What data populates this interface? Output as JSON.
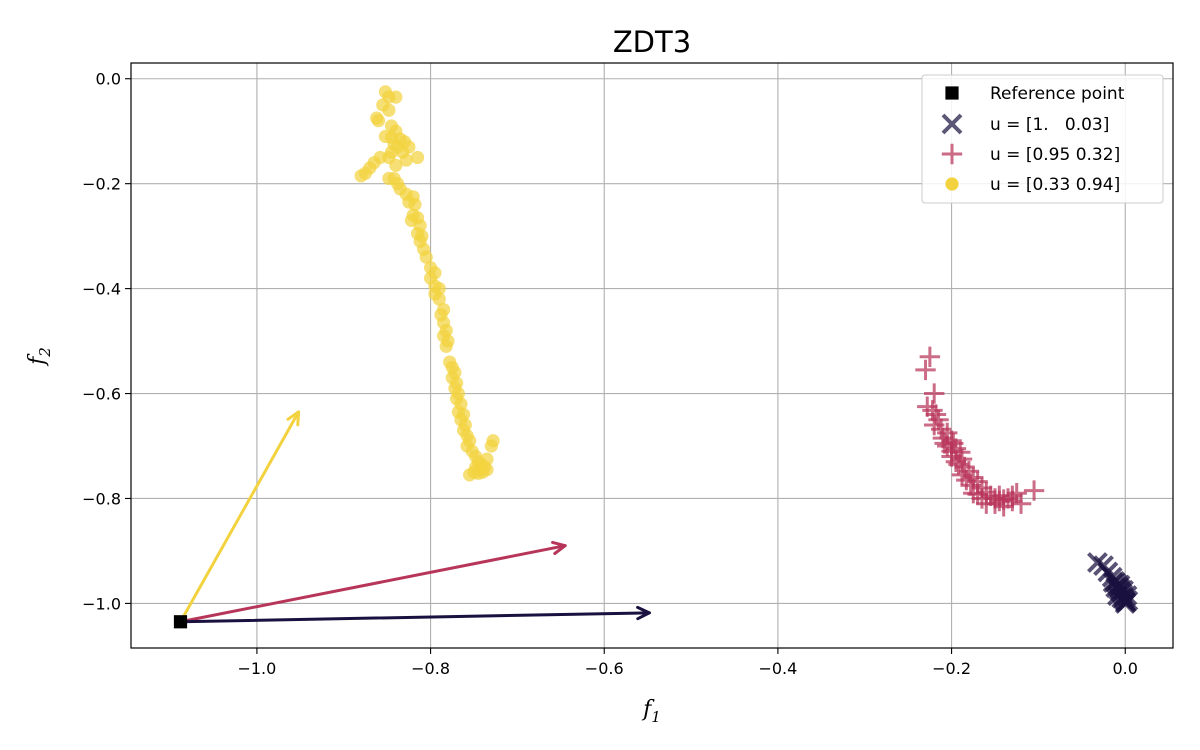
{
  "chart_data": {
    "type": "scatter",
    "title": "ZDT3",
    "xlabel": "f",
    "xlabel_sub": "1",
    "ylabel": "f",
    "ylabel_sub": "2",
    "xlim": [
      -1.145,
      0.055
    ],
    "ylim": [
      -1.085,
      0.03
    ],
    "xticks": [
      -1.0,
      -0.8,
      -0.6,
      -0.4,
      -0.2,
      0.0
    ],
    "xtick_labels": [
      "−1.0",
      "−0.8",
      "−0.6",
      "−0.4",
      "−0.2",
      "0.0"
    ],
    "yticks": [
      0.0,
      -0.2,
      -0.4,
      -0.6,
      -0.8,
      -1.0
    ],
    "ytick_labels": [
      "0.0",
      "−0.2",
      "−0.4",
      "−0.6",
      "−0.8",
      "−1.0"
    ],
    "grid": true,
    "legend_position": "top-right",
    "reference_point": {
      "name": "Reference point",
      "x": -1.088,
      "y": -1.035,
      "color": "#000000",
      "marker": "square"
    },
    "arrows": [
      {
        "color": "#f2d33f",
        "from": [
          -1.088,
          -1.035
        ],
        "to": [
          -0.952,
          -0.635
        ]
      },
      {
        "color": "#b8355a",
        "from": [
          -1.088,
          -1.035
        ],
        "to": [
          -0.645,
          -0.89
        ]
      },
      {
        "color": "#1a1140",
        "from": [
          -1.088,
          -1.035
        ],
        "to": [
          -0.548,
          -1.018
        ]
      }
    ],
    "series": [
      {
        "name": "u = [1.   0.03]",
        "marker": "x",
        "color": "#1a1140",
        "legend_color": "#5c5677",
        "points": [
          [
            -0.032,
            -0.922
          ],
          [
            -0.025,
            -0.928
          ],
          [
            -0.02,
            -0.94
          ],
          [
            -0.015,
            -0.95
          ],
          [
            -0.012,
            -0.958
          ],
          [
            -0.01,
            -0.962
          ],
          [
            -0.008,
            -0.968
          ],
          [
            -0.006,
            -0.972
          ],
          [
            -0.005,
            -0.978
          ],
          [
            -0.003,
            -0.982
          ],
          [
            -0.002,
            -0.988
          ],
          [
            -0.001,
            -0.992
          ],
          [
            0.0,
            -0.996
          ],
          [
            0.001,
            -0.998
          ],
          [
            0.003,
            -0.995
          ],
          [
            -0.004,
            -0.99
          ],
          [
            -0.007,
            -0.975
          ],
          [
            -0.009,
            -0.985
          ],
          [
            0.002,
            -0.985
          ],
          [
            -0.011,
            -0.97
          ],
          [
            -0.014,
            -0.96
          ],
          [
            0.0,
            -1.0
          ],
          [
            -0.002,
            -0.975
          ],
          [
            -0.006,
            -0.965
          ]
        ]
      },
      {
        "name": "u = [0.95 0.32]",
        "marker": "plus",
        "color": "#b8355a",
        "legend_color": "#cc6b85",
        "points": [
          [
            -0.225,
            -0.53
          ],
          [
            -0.23,
            -0.555
          ],
          [
            -0.22,
            -0.6
          ],
          [
            -0.228,
            -0.625
          ],
          [
            -0.222,
            -0.632
          ],
          [
            -0.218,
            -0.64
          ],
          [
            -0.215,
            -0.65
          ],
          [
            -0.22,
            -0.66
          ],
          [
            -0.212,
            -0.668
          ],
          [
            -0.205,
            -0.675
          ],
          [
            -0.21,
            -0.685
          ],
          [
            -0.2,
            -0.69
          ],
          [
            -0.198,
            -0.695
          ],
          [
            -0.205,
            -0.7
          ],
          [
            -0.195,
            -0.705
          ],
          [
            -0.19,
            -0.712
          ],
          [
            -0.2,
            -0.72
          ],
          [
            -0.188,
            -0.725
          ],
          [
            -0.192,
            -0.735
          ],
          [
            -0.185,
            -0.74
          ],
          [
            -0.18,
            -0.748
          ],
          [
            -0.188,
            -0.755
          ],
          [
            -0.175,
            -0.76
          ],
          [
            -0.17,
            -0.768
          ],
          [
            -0.178,
            -0.775
          ],
          [
            -0.165,
            -0.78
          ],
          [
            -0.16,
            -0.788
          ],
          [
            -0.17,
            -0.792
          ],
          [
            -0.155,
            -0.795
          ],
          [
            -0.15,
            -0.8
          ],
          [
            -0.145,
            -0.805
          ],
          [
            -0.14,
            -0.802
          ],
          [
            -0.135,
            -0.8
          ],
          [
            -0.13,
            -0.795
          ],
          [
            -0.125,
            -0.79
          ],
          [
            -0.12,
            -0.81
          ],
          [
            -0.105,
            -0.785
          ],
          [
            -0.15,
            -0.81
          ],
          [
            -0.14,
            -0.815
          ],
          [
            -0.16,
            -0.81
          ],
          [
            -0.165,
            -0.8
          ],
          [
            -0.175,
            -0.79
          ],
          [
            -0.183,
            -0.765
          ],
          [
            -0.195,
            -0.73
          ],
          [
            -0.2,
            -0.71
          ],
          [
            -0.208,
            -0.695
          ],
          [
            -0.13,
            -0.805
          ],
          [
            -0.145,
            -0.795
          ]
        ]
      },
      {
        "name": "u = [0.33 0.94]",
        "marker": "circle",
        "color": "#f2d33f",
        "legend_color": "#f2d33f",
        "points": [
          [
            -0.852,
            -0.025
          ],
          [
            -0.848,
            -0.035
          ],
          [
            -0.84,
            -0.035
          ],
          [
            -0.855,
            -0.05
          ],
          [
            -0.848,
            -0.06
          ],
          [
            -0.862,
            -0.075
          ],
          [
            -0.86,
            -0.08
          ],
          [
            -0.845,
            -0.09
          ],
          [
            -0.84,
            -0.1
          ],
          [
            -0.852,
            -0.11
          ],
          [
            -0.845,
            -0.112
          ],
          [
            -0.835,
            -0.115
          ],
          [
            -0.83,
            -0.12
          ],
          [
            -0.842,
            -0.125
          ],
          [
            -0.838,
            -0.13
          ],
          [
            -0.825,
            -0.13
          ],
          [
            -0.832,
            -0.14
          ],
          [
            -0.845,
            -0.14
          ],
          [
            -0.858,
            -0.15
          ],
          [
            -0.848,
            -0.15
          ],
          [
            -0.815,
            -0.15
          ],
          [
            -0.828,
            -0.155
          ],
          [
            -0.865,
            -0.16
          ],
          [
            -0.87,
            -0.17
          ],
          [
            -0.875,
            -0.18
          ],
          [
            -0.88,
            -0.185
          ],
          [
            -0.84,
            -0.165
          ],
          [
            -0.842,
            -0.19
          ],
          [
            -0.848,
            -0.19
          ],
          [
            -0.838,
            -0.2
          ],
          [
            -0.835,
            -0.21
          ],
          [
            -0.828,
            -0.22
          ],
          [
            -0.82,
            -0.225
          ],
          [
            -0.825,
            -0.235
          ],
          [
            -0.818,
            -0.24
          ],
          [
            -0.82,
            -0.26
          ],
          [
            -0.815,
            -0.265
          ],
          [
            -0.822,
            -0.27
          ],
          [
            -0.812,
            -0.28
          ],
          [
            -0.815,
            -0.295
          ],
          [
            -0.81,
            -0.3
          ],
          [
            -0.812,
            -0.31
          ],
          [
            -0.808,
            -0.325
          ],
          [
            -0.805,
            -0.34
          ],
          [
            -0.8,
            -0.36
          ],
          [
            -0.795,
            -0.37
          ],
          [
            -0.8,
            -0.38
          ],
          [
            -0.795,
            -0.395
          ],
          [
            -0.79,
            -0.4
          ],
          [
            -0.795,
            -0.41
          ],
          [
            -0.79,
            -0.42
          ],
          [
            -0.785,
            -0.44
          ],
          [
            -0.788,
            -0.45
          ],
          [
            -0.785,
            -0.465
          ],
          [
            -0.782,
            -0.48
          ],
          [
            -0.785,
            -0.49
          ],
          [
            -0.78,
            -0.5
          ],
          [
            -0.782,
            -0.51
          ],
          [
            -0.778,
            -0.54
          ],
          [
            -0.775,
            -0.55
          ],
          [
            -0.772,
            -0.56
          ],
          [
            -0.775,
            -0.57
          ],
          [
            -0.77,
            -0.58
          ],
          [
            -0.772,
            -0.59
          ],
          [
            -0.768,
            -0.6
          ],
          [
            -0.77,
            -0.61
          ],
          [
            -0.765,
            -0.62
          ],
          [
            -0.768,
            -0.635
          ],
          [
            -0.762,
            -0.64
          ],
          [
            -0.765,
            -0.65
          ],
          [
            -0.76,
            -0.66
          ],
          [
            -0.762,
            -0.67
          ],
          [
            -0.758,
            -0.68
          ],
          [
            -0.755,
            -0.69
          ],
          [
            -0.758,
            -0.7
          ],
          [
            -0.752,
            -0.71
          ],
          [
            -0.748,
            -0.72
          ],
          [
            -0.745,
            -0.73
          ],
          [
            -0.742,
            -0.735
          ],
          [
            -0.738,
            -0.74
          ],
          [
            -0.735,
            -0.745
          ],
          [
            -0.74,
            -0.75
          ],
          [
            -0.745,
            -0.752
          ],
          [
            -0.75,
            -0.75
          ],
          [
            -0.735,
            -0.725
          ],
          [
            -0.73,
            -0.7
          ],
          [
            -0.728,
            -0.69
          ],
          [
            -0.742,
            -0.745
          ],
          [
            -0.755,
            -0.755
          ],
          [
            -0.748,
            -0.74
          ]
        ]
      },
      {
        "name": "Reference point",
        "marker": "square",
        "color": "#000000",
        "points": [
          [
            -1.088,
            -1.035
          ]
        ]
      }
    ]
  }
}
